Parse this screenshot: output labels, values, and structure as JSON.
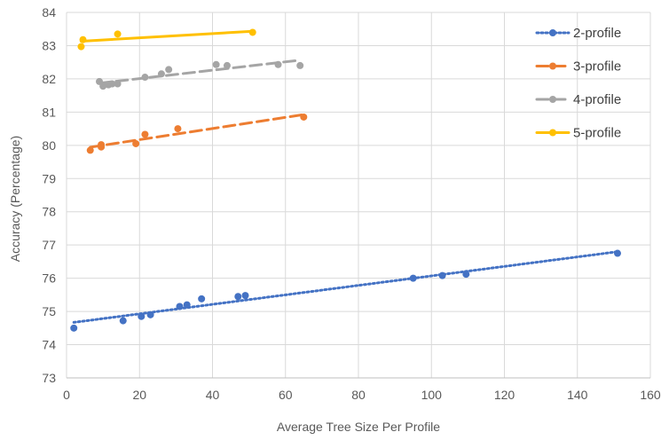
{
  "chart_data": {
    "type": "scatter",
    "title": "",
    "xlabel": "Average Tree Size Per Profile",
    "ylabel": "Accuracy (Percentage)",
    "xlim": [
      0,
      160
    ],
    "ylim": [
      73,
      84
    ],
    "xticks": [
      0,
      20,
      40,
      60,
      80,
      100,
      120,
      140,
      160
    ],
    "yticks": [
      73,
      74,
      75,
      76,
      77,
      78,
      79,
      80,
      81,
      82,
      83,
      84
    ],
    "grid": true,
    "legend_position": "top-right",
    "series": [
      {
        "name": "2-profile",
        "color": "#4472C4",
        "line_style": "dotted",
        "x": [
          2,
          15.5,
          20.5,
          23,
          31,
          33,
          37,
          47,
          49,
          95,
          103,
          109.5,
          151
        ],
        "y": [
          74.5,
          74.72,
          74.85,
          74.9,
          75.15,
          75.2,
          75.38,
          75.45,
          75.48,
          76.0,
          76.08,
          76.12,
          76.75
        ]
      },
      {
        "name": "3-profile",
        "color": "#ED7D31",
        "line_style": "dashed",
        "x": [
          6.5,
          9.5,
          9.5,
          19,
          21.5,
          30.5,
          65
        ],
        "y": [
          79.85,
          79.95,
          80.02,
          80.05,
          80.33,
          80.5,
          80.85
        ]
      },
      {
        "name": "4-profile",
        "color": "#A5A5A5",
        "line_style": "dashed",
        "x": [
          9,
          10,
          11.5,
          12.5,
          14,
          21.5,
          26,
          28,
          41,
          44,
          58,
          64
        ],
        "y": [
          81.92,
          81.78,
          81.82,
          81.85,
          81.85,
          82.05,
          82.15,
          82.28,
          82.43,
          82.4,
          82.43,
          82.4
        ]
      },
      {
        "name": "5-profile",
        "color": "#FFC000",
        "line_style": "solid",
        "x": [
          4,
          4.5,
          14,
          51
        ],
        "y": [
          82.97,
          83.18,
          83.35,
          83.4
        ]
      }
    ]
  }
}
